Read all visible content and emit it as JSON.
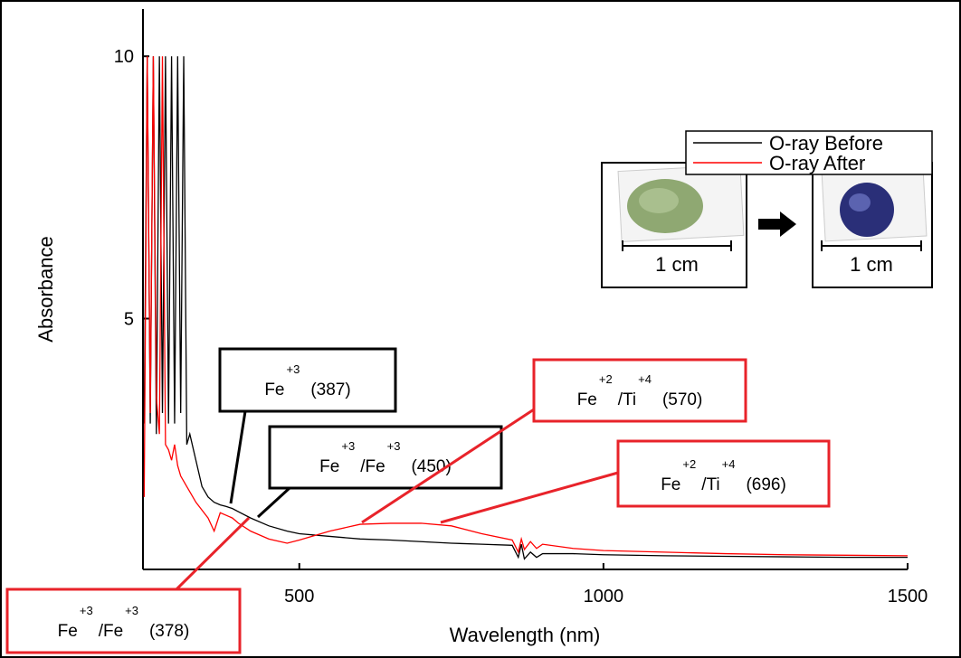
{
  "chart_data": {
    "type": "line",
    "x_label": "Wavelength (nm)",
    "y_label": "Absorbance",
    "xlim": [
      243,
      1500
    ],
    "ylim": [
      0.22,
      10.9
    ],
    "xticks": [
      500,
      1000,
      1500
    ],
    "yticks": [
      5,
      10
    ],
    "legend_position": "upper right",
    "x": [
      245,
      250,
      255,
      260,
      265,
      270,
      275,
      280,
      285,
      290,
      295,
      300,
      305,
      310,
      315,
      320,
      330,
      340,
      350,
      360,
      370,
      380,
      390,
      400,
      420,
      450,
      480,
      500,
      550,
      600,
      650,
      700,
      750,
      800,
      850,
      860,
      865,
      870,
      880,
      890,
      900,
      950,
      1000,
      1100,
      1200,
      1300,
      1400,
      1500
    ],
    "series": [
      {
        "name": "O-ray Before",
        "color": "#000000",
        "values": [
          3.0,
          10,
          3.0,
          10,
          2.8,
          10,
          3.2,
          10,
          3.0,
          10,
          3.0,
          10,
          3.2,
          10,
          2.6,
          2.8,
          2.3,
          1.8,
          1.6,
          1.5,
          1.45,
          1.42,
          1.38,
          1.32,
          1.2,
          1.05,
          0.95,
          0.9,
          0.85,
          0.8,
          0.78,
          0.75,
          0.72,
          0.7,
          0.68,
          0.45,
          0.7,
          0.42,
          0.55,
          0.45,
          0.52,
          0.52,
          0.5,
          0.48,
          0.47,
          0.46,
          0.45,
          0.45
        ]
      },
      {
        "name": "O-ray After",
        "color": "#ff0000",
        "values": [
          1.6,
          10,
          3.2,
          10,
          3.5,
          2.8,
          10,
          2.6,
          2.5,
          2.3,
          2.6,
          2.2,
          2.0,
          1.9,
          1.8,
          1.7,
          1.5,
          1.35,
          1.2,
          0.95,
          1.3,
          1.25,
          1.2,
          1.1,
          0.95,
          0.8,
          0.72,
          0.78,
          0.95,
          1.08,
          1.1,
          1.1,
          1.05,
          0.9,
          0.78,
          0.55,
          0.8,
          0.6,
          0.75,
          0.62,
          0.7,
          0.62,
          0.58,
          0.55,
          0.52,
          0.5,
          0.49,
          0.48
        ]
      }
    ],
    "annotations": [
      {
        "color": "#000000",
        "parts": [
          {
            "text": "Fe",
            "sup": "+3"
          }
        ],
        "label": "(387)"
      },
      {
        "color": "#000000",
        "parts": [
          {
            "text": "Fe",
            "sup": "+3"
          },
          {
            "text": "/Fe",
            "sup": "+3"
          }
        ],
        "label": "(450)"
      },
      {
        "color": "#e8232a",
        "parts": [
          {
            "text": "Fe",
            "sup": "+2"
          },
          {
            "text": "/Ti",
            "sup": "+4"
          }
        ],
        "label": "(570)"
      },
      {
        "color": "#e8232a",
        "parts": [
          {
            "text": "Fe",
            "sup": "+2"
          },
          {
            "text": "/Ti",
            "sup": "+4"
          }
        ],
        "label": "(696)"
      },
      {
        "color": "#e8232a",
        "parts": [
          {
            "text": "Fe",
            "sup": "+3"
          },
          {
            "text": "/Fe",
            "sup": "+3"
          }
        ],
        "label": "(378)"
      }
    ],
    "inset_scale_label": "1 cm"
  }
}
